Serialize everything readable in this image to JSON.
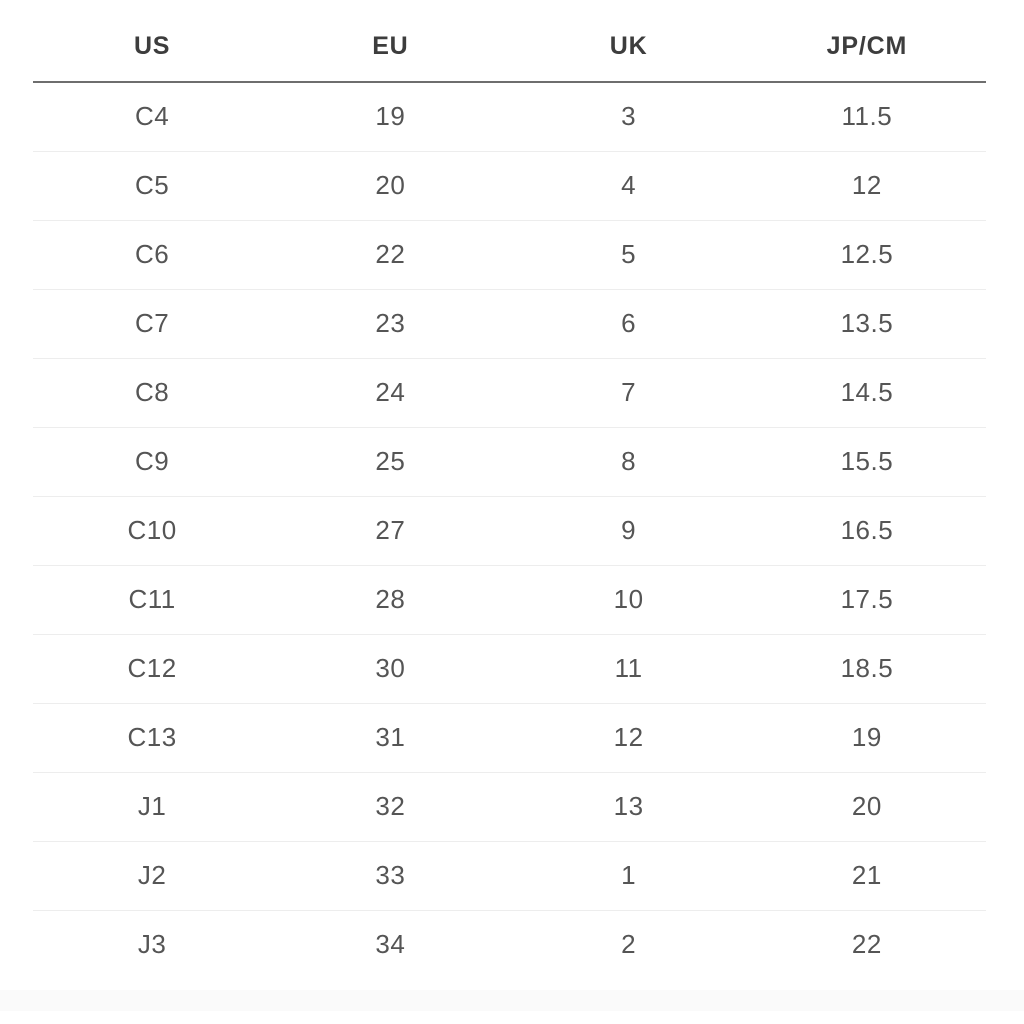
{
  "table": {
    "columns": [
      {
        "key": "us",
        "label": "US"
      },
      {
        "key": "eu",
        "label": "EU"
      },
      {
        "key": "uk",
        "label": "UK"
      },
      {
        "key": "jp_cm",
        "label": "JP/CM"
      }
    ],
    "rows": [
      {
        "us": "C4",
        "eu": "19",
        "uk": "3",
        "jp_cm": "11.5"
      },
      {
        "us": "C5",
        "eu": "20",
        "uk": "4",
        "jp_cm": "12"
      },
      {
        "us": "C6",
        "eu": "22",
        "uk": "5",
        "jp_cm": "12.5"
      },
      {
        "us": "C7",
        "eu": "23",
        "uk": "6",
        "jp_cm": "13.5"
      },
      {
        "us": "C8",
        "eu": "24",
        "uk": "7",
        "jp_cm": "14.5"
      },
      {
        "us": "C9",
        "eu": "25",
        "uk": "8",
        "jp_cm": "15.5"
      },
      {
        "us": "C10",
        "eu": "27",
        "uk": "9",
        "jp_cm": "16.5"
      },
      {
        "us": "C11",
        "eu": "28",
        "uk": "10",
        "jp_cm": "17.5"
      },
      {
        "us": "C12",
        "eu": "30",
        "uk": "11",
        "jp_cm": "18.5"
      },
      {
        "us": "C13",
        "eu": "31",
        "uk": "12",
        "jp_cm": "19"
      },
      {
        "us": "J1",
        "eu": "32",
        "uk": "13",
        "jp_cm": "20"
      },
      {
        "us": "J2",
        "eu": "33",
        "uk": "1",
        "jp_cm": "21"
      },
      {
        "us": "J3",
        "eu": "34",
        "uk": "2",
        "jp_cm": "22"
      }
    ]
  },
  "colors": {
    "background": "#ffffff",
    "header_text": "#3d3d3d",
    "body_text": "#555555",
    "header_rule": "#6e6e6e",
    "row_divider": "#ededed",
    "bottom_shade": "#fafafa"
  }
}
